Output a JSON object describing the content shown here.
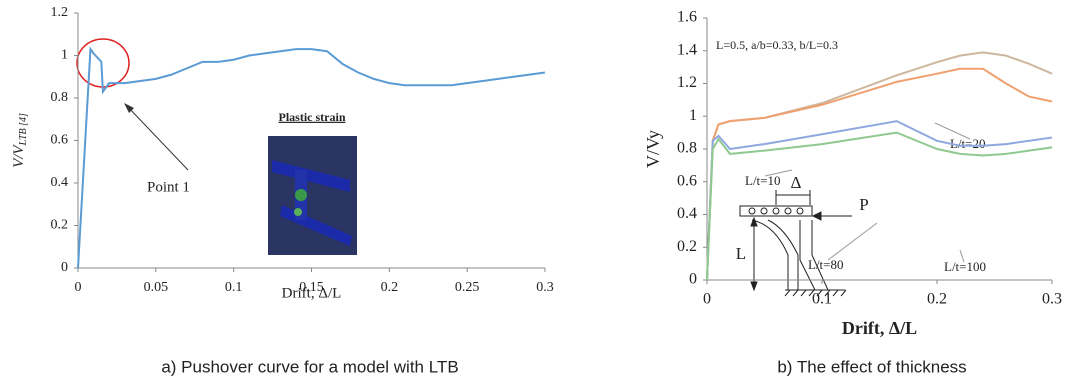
{
  "chart_data": [
    {
      "type": "line",
      "ylabel": "V/V",
      "ylabel_sub": "LTB [4]",
      "xlabel": "Drift, Δ/L",
      "caption": "a)  Pushover curve for a model with LTB",
      "annotations": [
        "Point 1",
        "Plastic strain"
      ],
      "xlim": [
        0,
        0.3
      ],
      "xticks": [
        0,
        0.05,
        0.1,
        0.15,
        0.2,
        0.25,
        0.3
      ],
      "ylim": [
        0,
        1.2
      ],
      "yticks": [
        0,
        0.2,
        0.4,
        0.6,
        0.8,
        1,
        1.2
      ],
      "x": [
        0,
        0.008,
        0.01,
        0.015,
        0.016,
        0.02,
        0.03,
        0.04,
        0.05,
        0.06,
        0.07,
        0.08,
        0.09,
        0.1,
        0.11,
        0.12,
        0.13,
        0.14,
        0.15,
        0.16,
        0.17,
        0.18,
        0.19,
        0.2,
        0.21,
        0.22,
        0.23,
        0.24,
        0.25,
        0.26,
        0.27,
        0.28,
        0.29,
        0.3
      ],
      "series": [
        {
          "color": "#5b9bd5",
          "values": [
            0,
            1.03,
            1.01,
            0.97,
            0.83,
            0.87,
            0.87,
            0.88,
            0.89,
            0.91,
            0.94,
            0.97,
            0.97,
            0.98,
            1.0,
            1.01,
            1.02,
            1.03,
            1.03,
            1.02,
            0.96,
            0.92,
            0.89,
            0.87,
            0.86,
            0.86,
            0.86,
            0.86,
            0.87,
            0.88,
            0.89,
            0.9,
            0.91,
            0.92
          ]
        }
      ]
    },
    {
      "type": "line",
      "ylabel": "V/Vy",
      "xlabel": "Drift, Δ/L",
      "caption": "b) The effect of thickness",
      "annotations": [
        "L=0.5, a/b=0.33, b/L=0.3",
        "Δ",
        "P",
        "L"
      ],
      "xlim": [
        0,
        0.3
      ],
      "xticks": [
        0,
        0.1,
        0.2,
        0.3
      ],
      "ylim": [
        0,
        1.6
      ],
      "yticks": [
        0,
        0.2,
        0.4,
        0.6,
        0.8,
        1,
        1.2,
        1.4,
        1.6
      ],
      "x": [
        0,
        0.005,
        0.01,
        0.02,
        0.05,
        0.1,
        0.165,
        0.2,
        0.22,
        0.24,
        0.26,
        0.28,
        0.3
      ],
      "series": [
        {
          "name": "L/t=10",
          "color": "#cdb79e",
          "values": [
            0,
            0.85,
            0.95,
            0.97,
            0.99,
            1.08,
            1.25,
            1.33,
            1.37,
            1.39,
            1.37,
            1.32,
            1.26
          ]
        },
        {
          "name": "L/t=20",
          "color": "#f0a070",
          "values": [
            0,
            0.85,
            0.95,
            0.97,
            0.99,
            1.07,
            1.21,
            1.26,
            1.29,
            1.29,
            1.2,
            1.12,
            1.09
          ]
        },
        {
          "name": "L/t=80",
          "color": "#8fa8e0",
          "values": [
            0,
            0.85,
            0.88,
            0.8,
            0.83,
            0.89,
            0.97,
            0.85,
            0.82,
            0.82,
            0.83,
            0.85,
            0.87
          ]
        },
        {
          "name": "L/t=100",
          "color": "#8fc98f",
          "values": [
            0,
            0.8,
            0.86,
            0.77,
            0.79,
            0.83,
            0.9,
            0.8,
            0.77,
            0.76,
            0.77,
            0.79,
            0.81
          ]
        }
      ]
    }
  ]
}
